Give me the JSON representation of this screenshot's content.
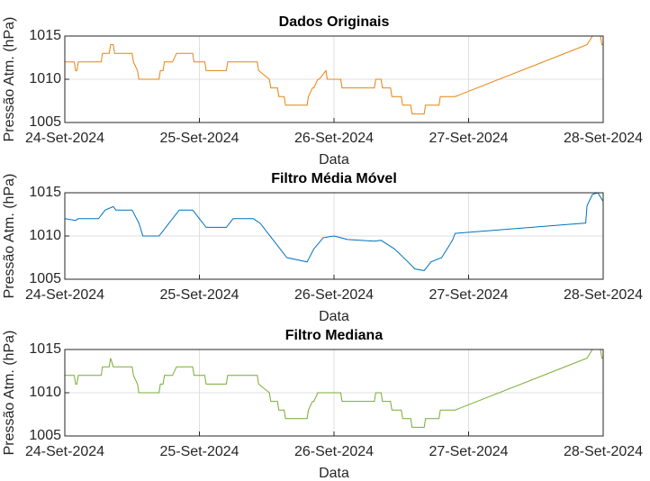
{
  "chart_data": [
    {
      "type": "line",
      "title": "Dados Originais",
      "xlabel": "Data",
      "ylabel": "Pressão Atm. (hPa)",
      "xlim": [
        0,
        4
      ],
      "ylim": [
        1005,
        1015
      ],
      "yticks": [
        1005,
        1010,
        1015
      ],
      "xticks": [
        {
          "value": 0,
          "label": "24-Set-2024"
        },
        {
          "value": 1,
          "label": "25-Set-2024"
        },
        {
          "value": 2,
          "label": "26-Set-2024"
        },
        {
          "value": 3,
          "label": "27-Set-2024"
        },
        {
          "value": 4,
          "label": "28-Set-2024"
        }
      ],
      "grid": true,
      "series": [
        {
          "color": "#e8820c",
          "x": [
            0,
            0.07,
            0.08,
            0.09,
            0.1,
            0.27,
            0.28,
            0.33,
            0.34,
            0.36,
            0.37,
            0.5,
            0.51,
            0.54,
            0.55,
            0.7,
            0.71,
            0.73,
            0.74,
            0.8,
            0.83,
            0.95,
            0.96,
            1.04,
            1.05,
            1.2,
            1.21,
            1.43,
            1.44,
            1.52,
            1.53,
            1.58,
            1.59,
            1.63,
            1.64,
            1.8,
            1.81,
            1.84,
            1.85,
            1.88,
            1.89,
            1.94,
            1.95,
            2.0,
            2.01,
            2.05,
            2.06,
            2.3,
            2.31,
            2.35,
            2.36,
            2.42,
            2.43,
            2.5,
            2.51,
            2.57,
            2.58,
            2.67,
            2.68,
            2.78,
            2.79,
            2.9,
            3.88,
            3.92,
            3.98,
            3.99,
            4.0
          ],
          "values": [
            1012,
            1012,
            1011,
            1011,
            1012,
            1012,
            1013,
            1013,
            1014,
            1014,
            1013,
            1013,
            1012,
            1011,
            1010,
            1010,
            1011,
            1011,
            1012,
            1012,
            1013,
            1013,
            1012,
            1012,
            1011,
            1011,
            1012,
            1012,
            1011,
            1010,
            1009,
            1009,
            1008,
            1008,
            1007,
            1007,
            1008,
            1009,
            1009,
            1010,
            1010,
            1011,
            1010,
            1010,
            1010,
            1010,
            1009,
            1009,
            1010,
            1010,
            1009,
            1009,
            1008,
            1008,
            1007,
            1007,
            1006,
            1006,
            1007,
            1007,
            1008,
            1008,
            1014,
            1015,
            1015,
            1014,
            1014
          ]
        }
      ]
    },
    {
      "type": "line",
      "title": "Filtro Média Móvel",
      "xlabel": "Data",
      "ylabel": "Pressão Atm. (hPa)",
      "xlim": [
        0,
        4
      ],
      "ylim": [
        1005,
        1015
      ],
      "yticks": [
        1005,
        1010,
        1015
      ],
      "xticks": [
        {
          "value": 0,
          "label": "24-Set-2024"
        },
        {
          "value": 1,
          "label": "25-Set-2024"
        },
        {
          "value": 2,
          "label": "26-Set-2024"
        },
        {
          "value": 3,
          "label": "27-Set-2024"
        },
        {
          "value": 4,
          "label": "28-Set-2024"
        }
      ],
      "grid": true,
      "series": [
        {
          "color": "#0072bd",
          "x": [
            0,
            0.08,
            0.1,
            0.25,
            0.3,
            0.36,
            0.38,
            0.5,
            0.55,
            0.58,
            0.7,
            0.75,
            0.8,
            0.85,
            0.95,
            1.0,
            1.05,
            1.2,
            1.25,
            1.4,
            1.45,
            1.55,
            1.65,
            1.8,
            1.85,
            1.92,
            2.0,
            2.05,
            2.1,
            2.3,
            2.35,
            2.45,
            2.55,
            2.6,
            2.67,
            2.72,
            2.8,
            2.88,
            2.9,
            3.87,
            3.88,
            3.92,
            3.96,
            3.98,
            4.0
          ],
          "values": [
            1012,
            1011.8,
            1012,
            1012,
            1013,
            1013.4,
            1013,
            1013,
            1011.5,
            1010,
            1010,
            1011,
            1012,
            1013,
            1013,
            1012,
            1011,
            1011,
            1012,
            1012,
            1011.5,
            1009.5,
            1007.5,
            1007,
            1008.5,
            1009.8,
            1010,
            1009.8,
            1009.6,
            1009.4,
            1009.5,
            1008.5,
            1007,
            1006.2,
            1006,
            1007,
            1007.5,
            1009.5,
            1010.3,
            1011.5,
            1013.5,
            1014.8,
            1015,
            1014.5,
            1014
          ]
        }
      ]
    },
    {
      "type": "line",
      "title": "Filtro Mediana",
      "xlabel": "Data",
      "ylabel": "Pressão Atm. (hPa)",
      "xlim": [
        0,
        4
      ],
      "ylim": [
        1005,
        1015
      ],
      "yticks": [
        1005,
        1010,
        1015
      ],
      "xticks": [
        {
          "value": 0,
          "label": "24-Set-2024"
        },
        {
          "value": 1,
          "label": "25-Set-2024"
        },
        {
          "value": 2,
          "label": "26-Set-2024"
        },
        {
          "value": 3,
          "label": "27-Set-2024"
        },
        {
          "value": 4,
          "label": "28-Set-2024"
        }
      ],
      "grid": true,
      "series": [
        {
          "color": "#77ac30",
          "x": [
            0,
            0.07,
            0.08,
            0.09,
            0.1,
            0.27,
            0.28,
            0.33,
            0.34,
            0.36,
            0.37,
            0.5,
            0.51,
            0.54,
            0.55,
            0.7,
            0.71,
            0.73,
            0.74,
            0.8,
            0.83,
            0.95,
            0.96,
            1.04,
            1.05,
            1.2,
            1.21,
            1.43,
            1.44,
            1.52,
            1.53,
            1.58,
            1.59,
            1.63,
            1.64,
            1.8,
            1.81,
            1.84,
            1.85,
            1.88,
            1.89,
            1.94,
            1.95,
            2.0,
            2.01,
            2.05,
            2.06,
            2.3,
            2.31,
            2.35,
            2.36,
            2.42,
            2.43,
            2.5,
            2.51,
            2.57,
            2.58,
            2.67,
            2.68,
            2.78,
            2.79,
            2.9,
            3.88,
            3.92,
            3.98,
            3.99,
            4.0
          ],
          "values": [
            1012,
            1012,
            1011,
            1011,
            1012,
            1012,
            1013,
            1013,
            1014,
            1013,
            1013,
            1013,
            1012,
            1011,
            1010,
            1010,
            1011,
            1011,
            1012,
            1012,
            1013,
            1013,
            1012,
            1012,
            1011,
            1011,
            1012,
            1012,
            1011,
            1010,
            1009,
            1009,
            1008,
            1008,
            1007,
            1007,
            1008,
            1009,
            1009,
            1010,
            1010,
            1010,
            1010,
            1010,
            1010,
            1010,
            1009,
            1009,
            1010,
            1010,
            1009,
            1009,
            1008,
            1008,
            1007,
            1007,
            1006,
            1006,
            1007,
            1007,
            1008,
            1008,
            1014,
            1015,
            1015,
            1014,
            1014
          ]
        }
      ]
    }
  ]
}
